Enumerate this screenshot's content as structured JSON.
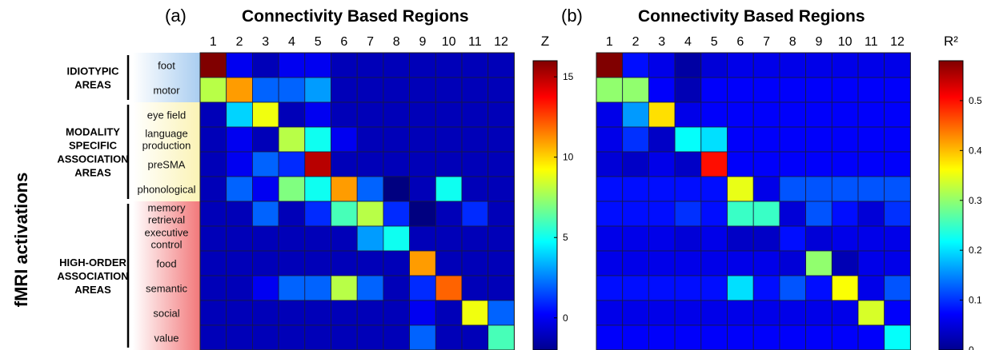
{
  "ylabel": "fMRI activations",
  "row_labels": [
    "foot",
    "motor",
    "eye field",
    "language production",
    "preSMA",
    "phonological",
    "memory retrieval",
    "executive control",
    "food",
    "semantic",
    "social",
    "value"
  ],
  "col_labels": [
    "1",
    "2",
    "3",
    "4",
    "5",
    "6",
    "7",
    "8",
    "9",
    "10",
    "11",
    "12"
  ],
  "groups": [
    {
      "label": "IDIOTYPIC AREAS",
      "rows": [
        0,
        1
      ],
      "color": "#a9cdf0"
    },
    {
      "label": "MODALITY SPECIFIC ASSOCIATION AREAS",
      "rows": [
        2,
        5
      ],
      "color": "#fbf3b5"
    },
    {
      "label": "HIGH-ORDER ASSOCIATION AREAS",
      "rows": [
        6,
        11
      ],
      "color": "#f2787a"
    }
  ],
  "colormap": "jet",
  "chart_data": [
    {
      "type": "heatmap",
      "panel": "(a)",
      "title": "Connectivity Based Regions",
      "colorbar_label": "Z",
      "vmin": -2,
      "vmax": 16,
      "colorbar_ticks": [
        0,
        5,
        10,
        15
      ],
      "values": [
        [
          16,
          0,
          -1,
          0,
          0,
          -1,
          -1,
          -1,
          -1,
          -1,
          -1,
          -1
        ],
        [
          8,
          11,
          2,
          2,
          3,
          -1,
          -1,
          -1,
          -1,
          -1,
          -1,
          -1
        ],
        [
          -1,
          4,
          9,
          -1,
          0,
          -1,
          -1,
          -1,
          -1,
          -1,
          -1,
          -1
        ],
        [
          -1,
          0,
          -1,
          8,
          5,
          0,
          -1,
          -1,
          -1,
          -1,
          -1,
          -1
        ],
        [
          -1,
          0,
          2,
          1,
          15,
          -1,
          -1,
          -1,
          -1,
          -1,
          -1,
          -1
        ],
        [
          -1,
          2,
          0,
          7,
          5,
          11,
          2,
          -2,
          -1,
          5,
          -1,
          -1
        ],
        [
          -1,
          -1,
          2,
          -1,
          1,
          6,
          8,
          1,
          -2,
          -1,
          1,
          -1
        ],
        [
          -1,
          -1,
          -1,
          -1,
          -1,
          -1,
          3,
          5,
          -1,
          -1,
          -1,
          -1
        ],
        [
          -1,
          -1,
          -1,
          -1,
          -1,
          -1,
          -1,
          -1,
          11,
          -1,
          -1,
          -1
        ],
        [
          -1,
          -1,
          0,
          2,
          2,
          8,
          2,
          -1,
          1,
          12,
          -1,
          -1
        ],
        [
          -1,
          -1,
          -1,
          -1,
          -1,
          -1,
          -1,
          -1,
          0,
          -1,
          9,
          2
        ],
        [
          -1,
          -1,
          -1,
          -1,
          -1,
          -1,
          -1,
          -1,
          2,
          -1,
          -1,
          6
        ]
      ]
    },
    {
      "type": "heatmap",
      "panel": "(b)",
      "title": "Connectivity Based Regions",
      "colorbar_label": "R²",
      "vmin": 0,
      "vmax": 0.58,
      "colorbar_ticks": [
        0,
        0.1,
        0.2,
        0.3,
        0.4,
        0.5
      ],
      "colorbar_tick_labels": [
        "0",
        "0.1",
        "0.2",
        "0.3",
        "0.4",
        "0.5"
      ],
      "values": [
        [
          0.58,
          0.08,
          0.06,
          0.02,
          0.05,
          0.06,
          0.06,
          0.06,
          0.06,
          0.06,
          0.06,
          0.06
        ],
        [
          0.3,
          0.3,
          0.07,
          0.03,
          0.07,
          0.07,
          0.07,
          0.07,
          0.07,
          0.07,
          0.07,
          0.07
        ],
        [
          0.06,
          0.16,
          0.38,
          0.06,
          0.07,
          0.07,
          0.07,
          0.07,
          0.07,
          0.07,
          0.07,
          0.07
        ],
        [
          0.06,
          0.1,
          0.04,
          0.22,
          0.2,
          0.07,
          0.07,
          0.07,
          0.07,
          0.07,
          0.07,
          0.07
        ],
        [
          0.05,
          0.04,
          0.06,
          0.04,
          0.5,
          0.07,
          0.07,
          0.07,
          0.07,
          0.07,
          0.07,
          0.07
        ],
        [
          0.08,
          0.08,
          0.08,
          0.08,
          0.08,
          0.35,
          0.06,
          0.12,
          0.12,
          0.12,
          0.12,
          0.12
        ],
        [
          0.08,
          0.08,
          0.08,
          0.1,
          0.08,
          0.25,
          0.25,
          0.05,
          0.12,
          0.08,
          0.05,
          0.1
        ],
        [
          0.06,
          0.06,
          0.06,
          0.05,
          0.06,
          0.04,
          0.04,
          0.08,
          0.05,
          0.06,
          0.06,
          0.06
        ],
        [
          0.06,
          0.06,
          0.06,
          0.06,
          0.06,
          0.06,
          0.06,
          0.05,
          0.3,
          0.03,
          0.06,
          0.06
        ],
        [
          0.08,
          0.08,
          0.08,
          0.08,
          0.08,
          0.2,
          0.08,
          0.12,
          0.08,
          0.36,
          0.06,
          0.12
        ],
        [
          0.06,
          0.06,
          0.06,
          0.06,
          0.06,
          0.06,
          0.06,
          0.06,
          0.06,
          0.06,
          0.34,
          0.07
        ],
        [
          0.07,
          0.07,
          0.07,
          0.07,
          0.07,
          0.07,
          0.07,
          0.07,
          0.07,
          0.07,
          0.07,
          0.22
        ]
      ]
    }
  ]
}
